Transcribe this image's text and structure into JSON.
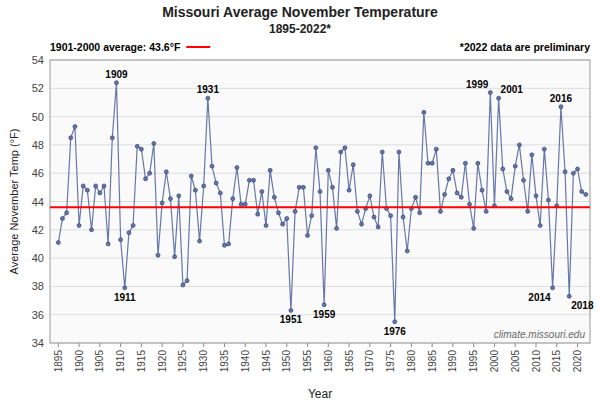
{
  "chart_data": {
    "type": "line",
    "title": "Missouri Average November Temperature",
    "subtitle": "1895-2022*",
    "x_label": "Year",
    "y_label": "Average November Temp (°F)",
    "note": "*2022 data are preliminary",
    "source": "climate.missouri.edu",
    "color": "#6677AA",
    "marker": "circle",
    "grid": true,
    "reference_line": {
      "value": 43.6,
      "label": "1901-2000 average: 43.6°F",
      "color": "#FF0000"
    },
    "annotations": [
      {
        "text": "1909",
        "x": 1909,
        "y": 52.4
      },
      {
        "text": "1911",
        "x": 1911,
        "y": 37.9
      },
      {
        "text": "1931",
        "x": 1931,
        "y": 51.3
      },
      {
        "text": "1951",
        "x": 1951,
        "y": 36.3
      },
      {
        "text": "1959",
        "x": 1959,
        "y": 36.7
      },
      {
        "text": "1976",
        "x": 1976,
        "y": 35.5
      },
      {
        "text": "1999",
        "x": 1999,
        "y": 51.7
      },
      {
        "text": "2001",
        "x": 2001,
        "y": 51.3
      },
      {
        "text": "2014",
        "x": 2014,
        "y": 37.9
      },
      {
        "text": "2016",
        "x": 2016,
        "y": 50.7
      },
      {
        "text": "2018",
        "x": 2018,
        "y": 37.3
      }
    ],
    "xlim": [
      1893,
      2023
    ],
    "xticks": [
      1895,
      1900,
      1905,
      1910,
      1915,
      1920,
      1925,
      1930,
      1935,
      1940,
      1945,
      1950,
      1955,
      1960,
      1965,
      1970,
      1975,
      1980,
      1985,
      1990,
      1995,
      2000,
      2005,
      2010,
      2015,
      2020
    ],
    "ylim": [
      34.0,
      54.0
    ],
    "yticks": [
      34.0,
      36.0,
      38.0,
      40.0,
      42.0,
      44.0,
      46.0,
      48.0,
      50.0,
      52.0,
      54.0
    ],
    "x": [
      1895,
      1896,
      1897,
      1898,
      1899,
      1900,
      1901,
      1902,
      1903,
      1904,
      1905,
      1906,
      1907,
      1908,
      1909,
      1910,
      1911,
      1912,
      1913,
      1914,
      1915,
      1916,
      1917,
      1918,
      1919,
      1920,
      1921,
      1922,
      1923,
      1924,
      1925,
      1926,
      1927,
      1928,
      1929,
      1930,
      1931,
      1932,
      1933,
      1934,
      1935,
      1936,
      1937,
      1938,
      1939,
      1940,
      1941,
      1942,
      1943,
      1944,
      1945,
      1946,
      1947,
      1948,
      1949,
      1950,
      1951,
      1952,
      1953,
      1954,
      1955,
      1956,
      1957,
      1958,
      1959,
      1960,
      1961,
      1962,
      1963,
      1964,
      1965,
      1966,
      1967,
      1968,
      1969,
      1970,
      1971,
      1972,
      1973,
      1974,
      1975,
      1976,
      1977,
      1978,
      1979,
      1980,
      1981,
      1982,
      1983,
      1984,
      1985,
      1986,
      1987,
      1988,
      1989,
      1990,
      1991,
      1992,
      1993,
      1994,
      1995,
      1996,
      1997,
      1998,
      1999,
      2000,
      2001,
      2002,
      2003,
      2004,
      2005,
      2006,
      2007,
      2008,
      2009,
      2010,
      2011,
      2012,
      2013,
      2014,
      2015,
      2016,
      2017,
      2018,
      2019,
      2020,
      2021,
      2022
    ],
    "values": [
      41.1,
      42.8,
      43.2,
      48.5,
      49.3,
      42.3,
      45.1,
      44.8,
      42.0,
      45.1,
      44.6,
      45.1,
      41.0,
      48.5,
      52.4,
      41.3,
      37.9,
      41.8,
      42.3,
      47.9,
      47.7,
      45.6,
      46.0,
      48.1,
      40.2,
      43.9,
      46.1,
      44.2,
      40.1,
      44.4,
      38.1,
      38.4,
      45.8,
      44.8,
      41.2,
      45.1,
      51.3,
      46.5,
      45.3,
      44.6,
      40.9,
      41.0,
      44.2,
      46.4,
      43.8,
      43.8,
      45.5,
      45.5,
      43.1,
      44.7,
      42.3,
      46.2,
      44.3,
      43.2,
      42.4,
      42.8,
      36.3,
      43.3,
      45.0,
      45.0,
      41.6,
      43.0,
      47.8,
      44.7,
      36.7,
      46.2,
      45.0,
      42.1,
      47.5,
      47.8,
      44.8,
      46.6,
      43.3,
      42.4,
      43.5,
      44.4,
      42.9,
      42.2,
      47.5,
      43.5,
      43.0,
      35.5,
      47.5,
      42.9,
      40.5,
      43.5,
      44.3,
      43.2,
      50.3,
      46.7,
      46.7,
      47.7,
      43.3,
      44.5,
      45.6,
      46.2,
      44.6,
      44.3,
      46.7,
      43.8,
      42.1,
      46.7,
      44.8,
      43.3,
      51.7,
      43.7,
      51.3,
      46.3,
      44.7,
      44.2,
      46.5,
      48.0,
      45.5,
      43.3,
      47.3,
      44.4,
      42.3,
      47.7,
      44.1,
      37.9,
      43.7,
      50.7,
      46.1,
      37.3,
      46.0,
      46.3,
      44.7,
      44.5
    ]
  }
}
